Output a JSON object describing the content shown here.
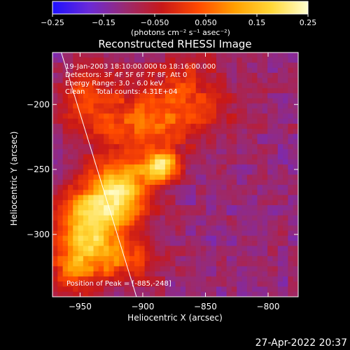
{
  "chart_data": {
    "type": "heatmap",
    "title": "Reconstructed RHESSI Image",
    "xlabel": "Heliocentric X (arcsec)",
    "ylabel": "Heliocentric Y (arcsec)",
    "xlim": [
      -972,
      -776
    ],
    "ylim": [
      -348,
      -160
    ],
    "xticks": [
      -950,
      -900,
      -850,
      -800
    ],
    "xtick_labels": [
      "−950",
      "−900",
      "−850",
      "−800"
    ],
    "yticks": [
      -200,
      -250,
      -300
    ],
    "ytick_labels": [
      "−200",
      "−250",
      "−300"
    ],
    "colorbar": {
      "range": [
        -0.25,
        0.25
      ],
      "ticks": [
        -0.25,
        -0.15,
        -0.05,
        0.05,
        0.15,
        0.25
      ],
      "tick_labels": [
        "−0.25",
        "−0.15",
        "−0.050",
        "0.050",
        "0.15",
        "0.25"
      ],
      "units_label": "(photons cm⁻² s⁻¹ asec⁻²)",
      "colormap": [
        "#1e10ff",
        "#6a2ad8",
        "#9a2a70",
        "#c81818",
        "#ff4a00",
        "#ffa000",
        "#ffd838",
        "#ffffd0"
      ]
    },
    "annotations": [
      "19-Jan-2003 18:10:00.000 to 18:16:00.000",
      "Detectors: 3F 4F 5F 6F 7F 8F, Att 0",
      "Energy Range: 3.0 - 6.0 keV",
      "Clean     Total counts: 4.31E+04",
      "Position of Peak = [-885,-248]"
    ],
    "peak": {
      "x": -885,
      "y": -248,
      "value": 0.25
    },
    "sources": [
      {
        "x": -885,
        "y": -248,
        "value": 0.24,
        "sx": 9,
        "sy": 8
      },
      {
        "x": -930,
        "y": -280,
        "value": 0.18,
        "sx": 22,
        "sy": 16
      },
      {
        "x": -945,
        "y": -305,
        "value": 0.15,
        "sx": 16,
        "sy": 20
      },
      {
        "x": -915,
        "y": -258,
        "value": 0.14,
        "sx": 16,
        "sy": 14
      },
      {
        "x": -900,
        "y": -215,
        "value": 0.09,
        "sx": 28,
        "sy": 18
      },
      {
        "x": -945,
        "y": -195,
        "value": 0.07,
        "sx": 16,
        "sy": 16
      },
      {
        "x": -865,
        "y": -190,
        "value": 0.05,
        "sx": 22,
        "sy": 22
      },
      {
        "x": -915,
        "y": -320,
        "value": 0.07,
        "sx": 22,
        "sy": 12
      },
      {
        "x": -960,
        "y": -330,
        "value": 0.05,
        "sx": 10,
        "sy": 14
      },
      {
        "x": -820,
        "y": -205,
        "value": -0.03,
        "sx": 18,
        "sy": 12
      }
    ],
    "background": -0.11,
    "limb_line": [
      [
        -965,
        -160
      ],
      [
        -905,
        -348
      ]
    ]
  },
  "timestamp": "27-Apr-2022 20:37"
}
